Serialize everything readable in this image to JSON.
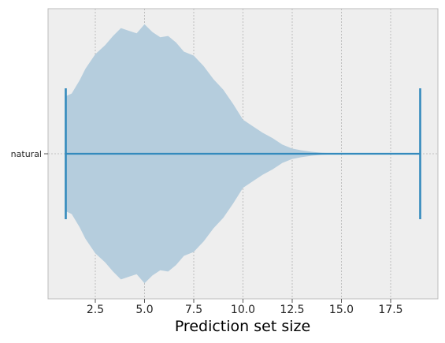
{
  "chart_data": {
    "type": "violin",
    "orientation": "horizontal",
    "title": "",
    "xlabel": "Prediction set size",
    "ylabel": "",
    "xlim": [
      0.1,
      19.9
    ],
    "xticks": [
      2.5,
      5.0,
      7.5,
      10.0,
      12.5,
      15.0,
      17.5
    ],
    "xtick_labels": [
      "2.5",
      "5.0",
      "7.5",
      "10.0",
      "12.5",
      "15.0",
      "17.5"
    ],
    "categories": [
      "natural"
    ],
    "grid": true,
    "colors": {
      "violin_fill": "#b5cddd",
      "line": "#348abd",
      "background": "#eeeeee",
      "frame": "#bcbcbc",
      "grid": "#b2b2b2"
    },
    "series": [
      {
        "category": "natural",
        "min": 1,
        "max": 19,
        "density_profile": [
          [
            1.0,
            0.44
          ],
          [
            1.3,
            0.46
          ],
          [
            1.7,
            0.56
          ],
          [
            2.0,
            0.65
          ],
          [
            2.5,
            0.76
          ],
          [
            3.0,
            0.83
          ],
          [
            3.4,
            0.9
          ],
          [
            3.8,
            0.96
          ],
          [
            4.2,
            0.94
          ],
          [
            4.6,
            0.92
          ],
          [
            5.0,
            0.99
          ],
          [
            5.4,
            0.93
          ],
          [
            5.8,
            0.89
          ],
          [
            6.2,
            0.9
          ],
          [
            6.6,
            0.85
          ],
          [
            7.0,
            0.78
          ],
          [
            7.5,
            0.75
          ],
          [
            8.0,
            0.67
          ],
          [
            8.5,
            0.57
          ],
          [
            9.0,
            0.49
          ],
          [
            9.5,
            0.38
          ],
          [
            10.0,
            0.26
          ],
          [
            10.5,
            0.21
          ],
          [
            11.0,
            0.16
          ],
          [
            11.5,
            0.12
          ],
          [
            12.0,
            0.07
          ],
          [
            12.5,
            0.04
          ],
          [
            13.0,
            0.025
          ],
          [
            13.5,
            0.015
          ],
          [
            14.0,
            0.008
          ],
          [
            14.5,
            0.004
          ],
          [
            15.0,
            0.002
          ],
          [
            15.5,
            0.0
          ]
        ]
      }
    ]
  }
}
